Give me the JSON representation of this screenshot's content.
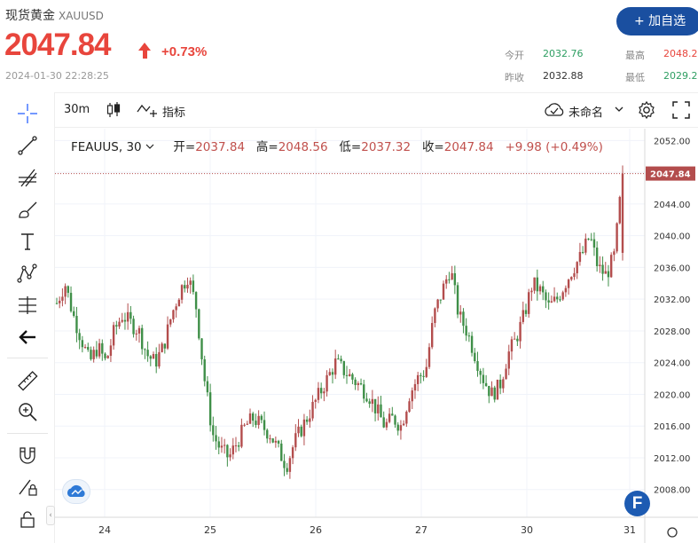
{
  "header": {
    "name": "现货黄金",
    "symbol": "XAUUSD",
    "price": "2047.84",
    "change": "+0.73%",
    "timestamp": "2024-01-30 22:28:25",
    "add_button": "+ 加自选",
    "stats": {
      "open_label": "今开",
      "open": "2032.76",
      "prev_label": "昨收",
      "prev": "2032.88",
      "high_label": "最高",
      "high": "2048.24",
      "low_label": "最低",
      "low": "2029.27"
    },
    "colors": {
      "up": "#e8453c",
      "down": "#2e9e62",
      "accent": "#1a4fa0"
    }
  },
  "toolbar": {
    "interval": "30m",
    "indicators_label": "指标",
    "layout_name": "未命名"
  },
  "legend": {
    "symbol": "FEAUUS, 30",
    "open_label": "开=",
    "open": "2037.84",
    "high_label": "高=",
    "high": "2048.56",
    "low_label": "低=",
    "low": "2037.32",
    "close_label": "收=",
    "close": "2047.84",
    "change": "+9.98 (+0.49%)"
  },
  "sidebar": {
    "tools": [
      "crosshair-icon",
      "trend-line-icon",
      "fib-icon",
      "brush-icon",
      "text-icon",
      "pattern-icon",
      "measure-lines-icon",
      "back-arrow-icon",
      "ruler-icon",
      "zoom-in-icon",
      "magnet-icon",
      "lock-pencil-icon",
      "lock-icon"
    ]
  },
  "chart_data": {
    "type": "candlestick",
    "y_ticks": [
      "2052.00",
      "2048.00",
      "2044.00",
      "2040.00",
      "2036.00",
      "2032.00",
      "2028.00",
      "2024.00",
      "2020.00",
      "2016.00",
      "2012.00",
      "2008.00"
    ],
    "ylim": [
      2004.5,
      2053.5
    ],
    "x_ticks": [
      "24",
      "25",
      "26",
      "27",
      "30",
      "31"
    ],
    "last_price": "2047.84",
    "up_color": "#b34d4d",
    "down_color": "#3f8f48",
    "close_path": [
      2031.5,
      2034,
      2030,
      2027,
      2024,
      2026,
      2024,
      2028,
      2030,
      2029,
      2028,
      2025,
      2024,
      2026,
      2030,
      2033,
      2035,
      2031,
      2022,
      2015,
      2013,
      2012,
      2014,
      2016,
      2017,
      2016,
      2015,
      2013,
      2011,
      2014,
      2016,
      2018,
      2020,
      2022,
      2024,
      2023,
      2022,
      2021,
      2020,
      2018,
      2016,
      2017,
      2016,
      2020,
      2022,
      2023,
      2030,
      2033,
      2036,
      2030,
      2028,
      2025,
      2022,
      2020,
      2021,
      2025,
      2027,
      2030,
      2034,
      2033,
      2031,
      2032,
      2034,
      2036,
      2037.5,
      2040,
      2036,
      2035,
      2037.5,
      2047.8
    ],
    "candle_count": 200
  }
}
